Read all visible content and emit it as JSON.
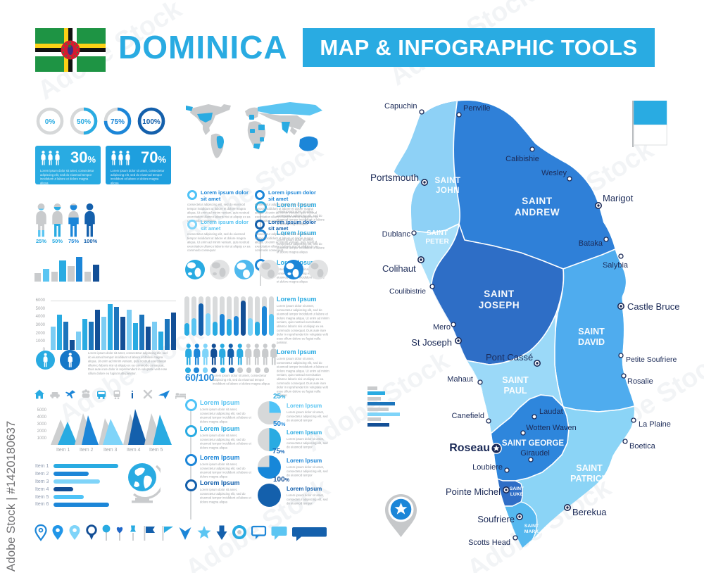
{
  "watermark": {
    "stock_label": "Adobe Stock | #1420180637",
    "diagonal": "Adobe Stock"
  },
  "header": {
    "title": "DOMINICA",
    "banner": "MAP & INFOGRAPHIC TOOLS"
  },
  "palette": {
    "bright": "#29ABE2",
    "sky": "#5BC5F2",
    "light": "#7FD4F9",
    "medium": "#1C86D8",
    "deep": "#1460AC",
    "navy": "#134F96",
    "gray": "#C9CBCD"
  },
  "lorem": {
    "heading": "Lorem Ipsum",
    "title_line": "Lorem ipsum dolor sit amet",
    "body_short": "Lorem ipsum dolor sit amet, consectetur adipiscing elit, sed do eiusmod tempor",
    "body_medium": "Lorem ipsum dolor sit amet, consectetur adipiscing elit, sed do eiusmod tempor incididunt ut labore et dolore magna aliqua",
    "body_long": "consectetur adipiscing elit, sed do eiusmod tempor incididunt ut labore et dolore magna aliqua. Ut enim ad minim veniam, quis nostrud exercitation ullamco laboris nisi ut aliquip ex ea commodo consequat",
    "body_xlong": "Lorem ipsum dolor sit amet, consectetur adipiscing elit, sed do eiusmod tempor incididunt ut labore et dolore magna aliqua. Ut enim ad minim veniam, quis nostrud exercitation ullamco laboris nisi ut aliquip ex ea commodo consequat. Duis aute irure dolor in reprehenderit in voluptate velit esse cillum dolore eu fugiat nulla pariatur."
  },
  "charts": {
    "donuts": [
      {
        "label": "0%",
        "value": 0,
        "color": "#C9CBCD",
        "text_color": "#29ABE2"
      },
      {
        "label": "50%",
        "value": 50,
        "color": "#29ABE2",
        "text_color": "#29ABE2"
      },
      {
        "label": "75%",
        "value": 75,
        "color": "#1C86D8",
        "text_color": "#1C86D8"
      },
      {
        "label": "100%",
        "value": 100,
        "color": "#1460AC",
        "text_color": "#1460AC"
      }
    ],
    "stat_boxes": [
      {
        "value": "30",
        "unit": "%"
      },
      {
        "value": "70",
        "unit": "%"
      }
    ],
    "people_fill": [
      {
        "label": "25%",
        "value": 25,
        "color": "#5BC5F2"
      },
      {
        "label": "50%",
        "value": 50,
        "color": "#29ABE2"
      },
      {
        "label": "75%",
        "value": 75,
        "color": "#1C86D8"
      },
      {
        "label": "100%",
        "value": 100,
        "color": "#1460AC"
      }
    ],
    "mini_bars": {
      "values": [
        12,
        18,
        14,
        30,
        22,
        35,
        14,
        24
      ],
      "colors": [
        "#C9CBCD",
        "#5BC5F2",
        "#C9CBCD",
        "#29ABE2",
        "#C9CBCD",
        "#1C86D8",
        "#C9CBCD",
        "#134F96"
      ]
    },
    "column_chart": {
      "yticks": [
        "6000",
        "5000",
        "4000",
        "3000",
        "2000",
        "1000",
        "0"
      ],
      "ymax": 6000,
      "values": [
        2800,
        4250,
        3400,
        1200,
        2230,
        3760,
        3400,
        4900,
        4000,
        5550,
        5250,
        4000,
        4900,
        3230,
        4250,
        2800,
        3400,
        2230,
        3760,
        4550
      ],
      "palette": [
        "#7CCDF4",
        "#29ABE2",
        "#1C75BC",
        "#134F96"
      ]
    },
    "capsules": {
      "values": [
        32,
        45,
        82,
        58,
        35,
        55,
        42,
        50,
        90,
        45,
        35,
        75,
        55
      ],
      "colors": [
        "#29ABE2",
        "#5BC5F2",
        "#1460AC",
        "#7FD4F9",
        "#29ABE2",
        "#1C86D8",
        "#29ABE2",
        "#1C86D8",
        "#134F96",
        "#7FD4F9",
        "#29ABE2",
        "#1C86D8",
        "#5BC5F2"
      ]
    },
    "ratio": {
      "label": "60/100",
      "people_colors": [
        "#29ABE2",
        "#1C86D8",
        "#7FD4F9",
        "#134F96",
        "#29ABE2",
        "#1460AC",
        "#29ABE2",
        "#C9CBCD",
        "#C9CBCD",
        "#C9CBCD",
        "#C9CBCD"
      ],
      "dot_colors": [
        "#29ABE2",
        "#1C86D8",
        "#7FD4F9",
        "#134F96",
        "#29ABE2",
        "#1460AC",
        "#C9CBCD",
        "#C9CBCD",
        "#C9CBCD",
        "#C9CBCD"
      ]
    },
    "area_chart": {
      "yticks": [
        "5000",
        "4000",
        "3000",
        "2000",
        "1000"
      ],
      "items": [
        "Item 1",
        "Item 2",
        "Item 3",
        "Item 4",
        "Item 5"
      ]
    },
    "hbars": {
      "items": [
        "Item 1",
        "Item 2",
        "Item 3",
        "Item 4",
        "Item 5",
        "Item 6"
      ],
      "widths": [
        92,
        50,
        66,
        28,
        43,
        79
      ],
      "colors": [
        "#29ABE2",
        "#1C86D8",
        "#7FD4F9",
        "#134F96",
        "#4FC3F7",
        "#1C86D8"
      ]
    },
    "side_bars": {
      "widths": [
        14,
        25,
        19,
        39,
        30,
        46,
        19,
        31
      ],
      "colors": [
        "#C9CBCD",
        "#29ABE2",
        "#C9CBCD",
        "#1C75BC",
        "#C9CBCD",
        "#7FD4F9",
        "#C9CBCD",
        "#134F96"
      ]
    },
    "pies": [
      {
        "label": "25",
        "unit": "%",
        "value": 25,
        "color": "#4FC3F7",
        "label_color": "#29ABE2",
        "heading_color": "#5BC5F2"
      },
      {
        "label": "50",
        "unit": "%",
        "value": 50,
        "color": "#29ABE2",
        "label_color": "#1C86D8",
        "heading_color": "#29ABE2"
      },
      {
        "label": "75",
        "unit": "%",
        "value": 75,
        "color": "#1787D9",
        "label_color": "#1567B8",
        "heading_color": "#1C86D8"
      },
      {
        "label": "100",
        "unit": "%",
        "value": 100,
        "color": "#1460AC",
        "label_color": "#134F96",
        "heading_color": "#1460AC"
      }
    ]
  },
  "map": {
    "parishes": [
      {
        "name": "SAINT JOHN",
        "line1": "SAINT",
        "line2": "JOHN"
      },
      {
        "name": "SAINT ANDREW",
        "line1": "SAINT",
        "line2": "ANDREW"
      },
      {
        "name": "SAINT PETER",
        "line1": "SAINT",
        "line2": "PETER"
      },
      {
        "name": "SAINT JOSEPH",
        "line1": "SAINT",
        "line2": "JOSEPH"
      },
      {
        "name": "SAINT DAVID",
        "line1": "SAINT",
        "line2": "DAVID"
      },
      {
        "name": "SAINT PAUL",
        "line1": "SAINT",
        "line2": "PAUL"
      },
      {
        "name": "SAINT GEORGE",
        "line1": "SAINT GEORGE",
        "line2": ""
      },
      {
        "name": "SAINT PATRICK",
        "line1": "SAINT",
        "line2": "PATRICK"
      },
      {
        "name": "SAINT LUKE",
        "line1": "SAINT",
        "line2": "LUKE"
      },
      {
        "name": "SAINT MARK",
        "line1": "SAINT",
        "line2": "MARK"
      }
    ],
    "cities": [
      {
        "name": "Capuchin",
        "type": "village"
      },
      {
        "name": "Penville",
        "type": "village"
      },
      {
        "name": "Calibishie",
        "type": "village"
      },
      {
        "name": "Wesley",
        "type": "village"
      },
      {
        "name": "Marigot",
        "type": "town"
      },
      {
        "name": "Portsmouth",
        "type": "town"
      },
      {
        "name": "Dublanc",
        "type": "village"
      },
      {
        "name": "Bataka",
        "type": "village"
      },
      {
        "name": "Salybia",
        "type": "village"
      },
      {
        "name": "Colihaut",
        "type": "town"
      },
      {
        "name": "Coulibistrie",
        "type": "village"
      },
      {
        "name": "Castle Bruce",
        "type": "town"
      },
      {
        "name": "Mero",
        "type": "village"
      },
      {
        "name": "St Joseph",
        "type": "town"
      },
      {
        "name": "Petite Soufriere",
        "type": "village"
      },
      {
        "name": "Rosalie",
        "type": "village"
      },
      {
        "name": "Pont Cassé",
        "type": "town"
      },
      {
        "name": "Mahaut",
        "type": "village"
      },
      {
        "name": "Canefield",
        "type": "village"
      },
      {
        "name": "Laudat",
        "type": "village"
      },
      {
        "name": "Wotten Waven",
        "type": "village"
      },
      {
        "name": "La Plaine",
        "type": "village"
      },
      {
        "name": "Roseau",
        "type": "capital"
      },
      {
        "name": "Giraudel",
        "type": "village"
      },
      {
        "name": "Boetica",
        "type": "village"
      },
      {
        "name": "Loubiere",
        "type": "village"
      },
      {
        "name": "Pointe Michel",
        "type": "town"
      },
      {
        "name": "Soufriere",
        "type": "town"
      },
      {
        "name": "Berekua",
        "type": "town"
      },
      {
        "name": "Scotts Head",
        "type": "village"
      }
    ]
  }
}
